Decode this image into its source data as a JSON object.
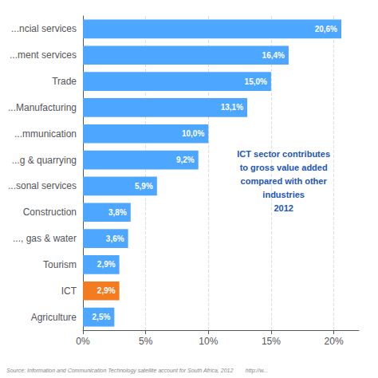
{
  "chart_data": {
    "type": "bar",
    "orientation": "horizontal",
    "categories": [
      "...ncial services",
      "...ment services",
      "Trade",
      "...Manufacturing",
      "...mmunication",
      "...g & quarrying",
      "...sonal services",
      "Construction",
      "..., gas & water",
      "Tourism",
      "ICT",
      "Agriculture"
    ],
    "values": [
      20.6,
      16.4,
      15.0,
      13.1,
      10.0,
      9.2,
      5.9,
      3.8,
      3.6,
      2.9,
      2.9,
      2.5
    ],
    "value_labels": [
      "20,6%",
      "16,4%",
      "15,0%",
      "13,1%",
      "10,0%",
      "9,2%",
      "5,9%",
      "3,8%",
      "3,6%",
      "2,9%",
      "2,9%",
      "2,5%"
    ],
    "colors": [
      "#4da6ff",
      "#4da6ff",
      "#4da6ff",
      "#4da6ff",
      "#4da6ff",
      "#4da6ff",
      "#4da6ff",
      "#4da6ff",
      "#4da6ff",
      "#4da6ff",
      "#f47c20",
      "#4da6ff"
    ],
    "xlim": [
      0,
      22
    ],
    "xticks": [
      {
        "value": 0,
        "label": "0%"
      },
      {
        "value": 5,
        "label": "5%"
      },
      {
        "value": 10,
        "label": "10%"
      },
      {
        "value": 15,
        "label": "15%"
      },
      {
        "value": 20,
        "label": "20%"
      }
    ],
    "grid": true,
    "data_labels": true,
    "annotations": [
      "ICT sector contributes\nto gross value added\ncompared with other\nindustries\n2012",
      "Source: Information and Communication Technology satellite account for South Africa, 2012        http://w..."
    ]
  }
}
